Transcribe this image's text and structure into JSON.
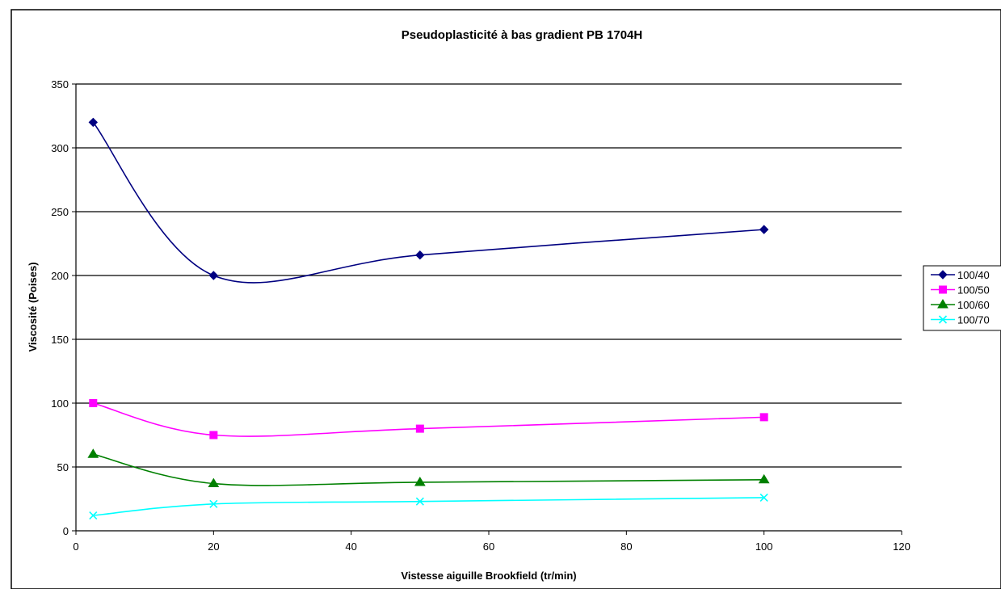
{
  "chart_data": {
    "type": "line",
    "title": "Pseudoplasticité à bas gradient PB 1704H",
    "xlabel": "Vistesse aiguille Brookfield (tr/min)",
    "ylabel": "Viscosité (Poises)",
    "xlim": [
      0,
      120
    ],
    "ylim": [
      0,
      350
    ],
    "xticks": [
      0,
      20,
      40,
      60,
      80,
      100,
      120
    ],
    "yticks": [
      0,
      50,
      100,
      150,
      200,
      250,
      300,
      350
    ],
    "grid": "horizontal major",
    "legend_position": "right",
    "x": [
      2.5,
      20,
      50,
      100
    ],
    "series": [
      {
        "name": "100/40",
        "values": [
          320,
          200,
          216,
          236
        ],
        "color": "#000080",
        "marker": "diamond"
      },
      {
        "name": "100/50",
        "values": [
          100,
          75,
          80,
          89
        ],
        "color": "#FF00FF",
        "marker": "square"
      },
      {
        "name": "100/60",
        "values": [
          60,
          37,
          38,
          40
        ],
        "color": "#008000",
        "marker": "triangle"
      },
      {
        "name": "100/70",
        "values": [
          12,
          21,
          23,
          26
        ],
        "color": "#00FFFF",
        "marker": "x"
      }
    ]
  }
}
